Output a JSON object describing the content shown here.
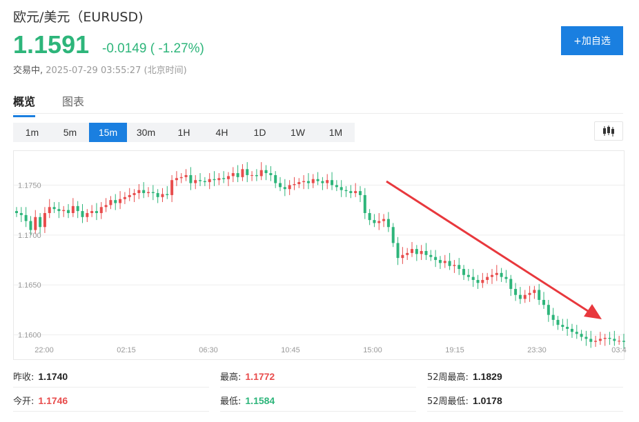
{
  "header": {
    "title": "欧元/美元（EURUSD)",
    "price": "1.1591",
    "change": "-0.0149 ( -1.27%)",
    "status_label": "交易中,",
    "timestamp": "2025-07-29 03:55:27",
    "timezone": "(北京时间)",
    "add_watchlist_label": "+加自选"
  },
  "tabs": [
    {
      "label": "概览",
      "active": true
    },
    {
      "label": "图表",
      "active": false
    }
  ],
  "timeframes": [
    {
      "label": "1m",
      "active": false
    },
    {
      "label": "5m",
      "active": false
    },
    {
      "label": "15m",
      "active": true
    },
    {
      "label": "30m",
      "active": false
    },
    {
      "label": "1H",
      "active": false
    },
    {
      "label": "4H",
      "active": false
    },
    {
      "label": "1D",
      "active": false
    },
    {
      "label": "1W",
      "active": false
    },
    {
      "label": "1M",
      "active": false
    }
  ],
  "chart_type_icon": "candlestick-icon",
  "colors": {
    "up": "#e84c4c",
    "down": "#2db57a",
    "accent": "#1a7fe0",
    "arrow": "#e8383d"
  },
  "chart_data": {
    "type": "candlestick",
    "ylim": [
      1.1588,
      1.178
    ],
    "yticks": [
      "1.1750",
      "1.1700",
      "1.1650",
      "1.1600"
    ],
    "xticks": [
      "22:00",
      "02:15",
      "06:30",
      "10:45",
      "15:00",
      "19:15",
      "23:30",
      "03:4"
    ],
    "grid": true,
    "annotation": "downtrend-arrow",
    "closes": [
      1.1722,
      1.172,
      1.1714,
      1.1705,
      1.1718,
      1.1708,
      1.1722,
      1.1728,
      1.1726,
      1.1724,
      1.1725,
      1.1722,
      1.1729,
      1.1724,
      1.1718,
      1.1722,
      1.1724,
      1.1722,
      1.1728,
      1.173,
      1.1735,
      1.1732,
      1.1736,
      1.1738,
      1.174,
      1.1742,
      1.1745,
      1.1742,
      1.1743,
      1.1742,
      1.1738,
      1.1741,
      1.174,
      1.1755,
      1.1757,
      1.1758,
      1.176,
      1.1752,
      1.1755,
      1.1754,
      1.1753,
      1.1756,
      1.1755,
      1.1757,
      1.1756,
      1.1759,
      1.1762,
      1.1758,
      1.1766,
      1.176,
      1.176,
      1.1759,
      1.1765,
      1.1762,
      1.176,
      1.1752,
      1.1748,
      1.1746,
      1.175,
      1.1751,
      1.1753,
      1.1754,
      1.1752,
      1.1756,
      1.1754,
      1.1752,
      1.1755,
      1.175,
      1.1748,
      1.1745,
      1.1744,
      1.1742,
      1.1744,
      1.174,
      1.1722,
      1.1715,
      1.1712,
      1.1714,
      1.1716,
      1.1708,
      1.1692,
      1.1677,
      1.168,
      1.1682,
      1.1686,
      1.1681,
      1.1684,
      1.168,
      1.1678,
      1.1675,
      1.1672,
      1.1674,
      1.1669,
      1.167,
      1.1666,
      1.166,
      1.1658,
      1.1655,
      1.1652,
      1.1655,
      1.1658,
      1.166,
      1.1662,
      1.1658,
      1.1656,
      1.1646,
      1.164,
      1.1636,
      1.164,
      1.1642,
      1.1645,
      1.1635,
      1.163,
      1.162,
      1.1615,
      1.161,
      1.1608,
      1.1606,
      1.1603,
      1.1601,
      1.1598,
      1.1596,
      1.1593,
      1.1594,
      1.1596,
      1.1597,
      1.1596,
      1.1594,
      1.1594,
      1.1593
    ]
  },
  "stats": {
    "prev_close_label": "昨收:",
    "prev_close": "1.1740",
    "high_label": "最高:",
    "high": "1.1772",
    "high52_label": "52周最高:",
    "high52": "1.1829",
    "open_label": "今开:",
    "open": "1.1746",
    "low_label": "最低:",
    "low": "1.1584",
    "low52_label": "52周最低:",
    "low52": "1.0178"
  }
}
